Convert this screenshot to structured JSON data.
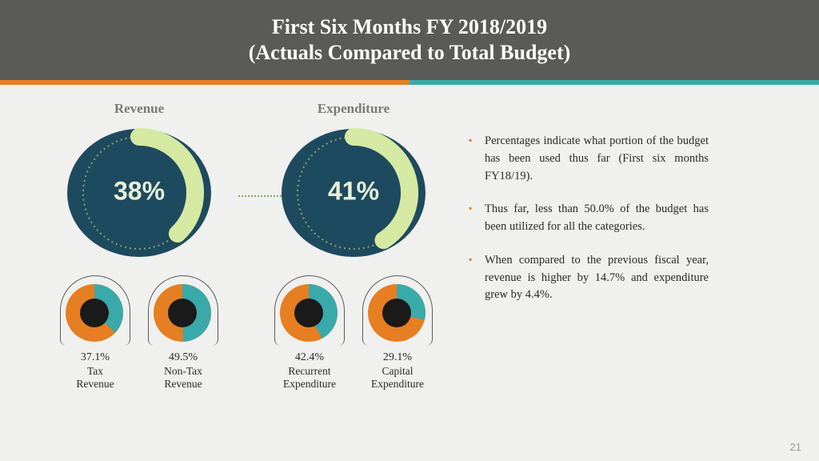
{
  "header": {
    "title_line1": "First Six Months FY 2018/2019",
    "title_line2": "(Actuals Compared to Total Budget)"
  },
  "stripe": {
    "color_left": "#e67e22",
    "color_right": "#3aa9a9"
  },
  "charts": {
    "revenue": {
      "title": "Revenue",
      "main": {
        "pct_label": "38%",
        "pct_value": 38,
        "ring_fill": "#d6e9a3",
        "ring_track_dotted": "#8aa85a",
        "center_fill": "#1e4a5f",
        "pct_text_color": "#e8f0d8"
      },
      "subs": [
        {
          "pct_label": "37.1%",
          "name": "Tax\nRevenue",
          "value": 37.1,
          "slice_color": "#3aa9a9",
          "rest_color": "#e67e22",
          "hub_color": "#1a1a1a"
        },
        {
          "pct_label": "49.5%",
          "name": "Non-Tax\nRevenue",
          "value": 49.5,
          "slice_color": "#3aa9a9",
          "rest_color": "#e67e22",
          "hub_color": "#1a1a1a"
        }
      ]
    },
    "expenditure": {
      "title": "Expenditure",
      "main": {
        "pct_label": "41%",
        "pct_value": 41,
        "ring_fill": "#d6e9a3",
        "ring_track_dotted": "#8aa85a",
        "center_fill": "#1e4a5f",
        "pct_text_color": "#e8f0d8"
      },
      "subs": [
        {
          "pct_label": "42.4%",
          "name": "Recurrent\nExpenditure",
          "value": 42.4,
          "slice_color": "#3aa9a9",
          "rest_color": "#e67e22",
          "hub_color": "#1a1a1a"
        },
        {
          "pct_label": "29.1%",
          "name": "Capital\nExpenditure",
          "value": 29.1,
          "slice_color": "#3aa9a9",
          "rest_color": "#e67e22",
          "hub_color": "#1a1a1a"
        }
      ]
    },
    "connector_color": "#8aa85a"
  },
  "notes": [
    "Percentages indicate what portion of the budget has been used thus far (First six months FY18/19).",
    "Thus far, less than 50.0% of the budget has been utilized for all the categories.",
    "When compared to the previous fiscal year, revenue is higher by 14.7% and expenditure grew by 4.4%."
  ],
  "page_number": "21",
  "style": {
    "bg": "#f0f0ee",
    "header_bg": "#5a5a58",
    "header_text": "#ffffff",
    "note_bullet": "#e67e22",
    "sub_border": "#5a5a58"
  }
}
